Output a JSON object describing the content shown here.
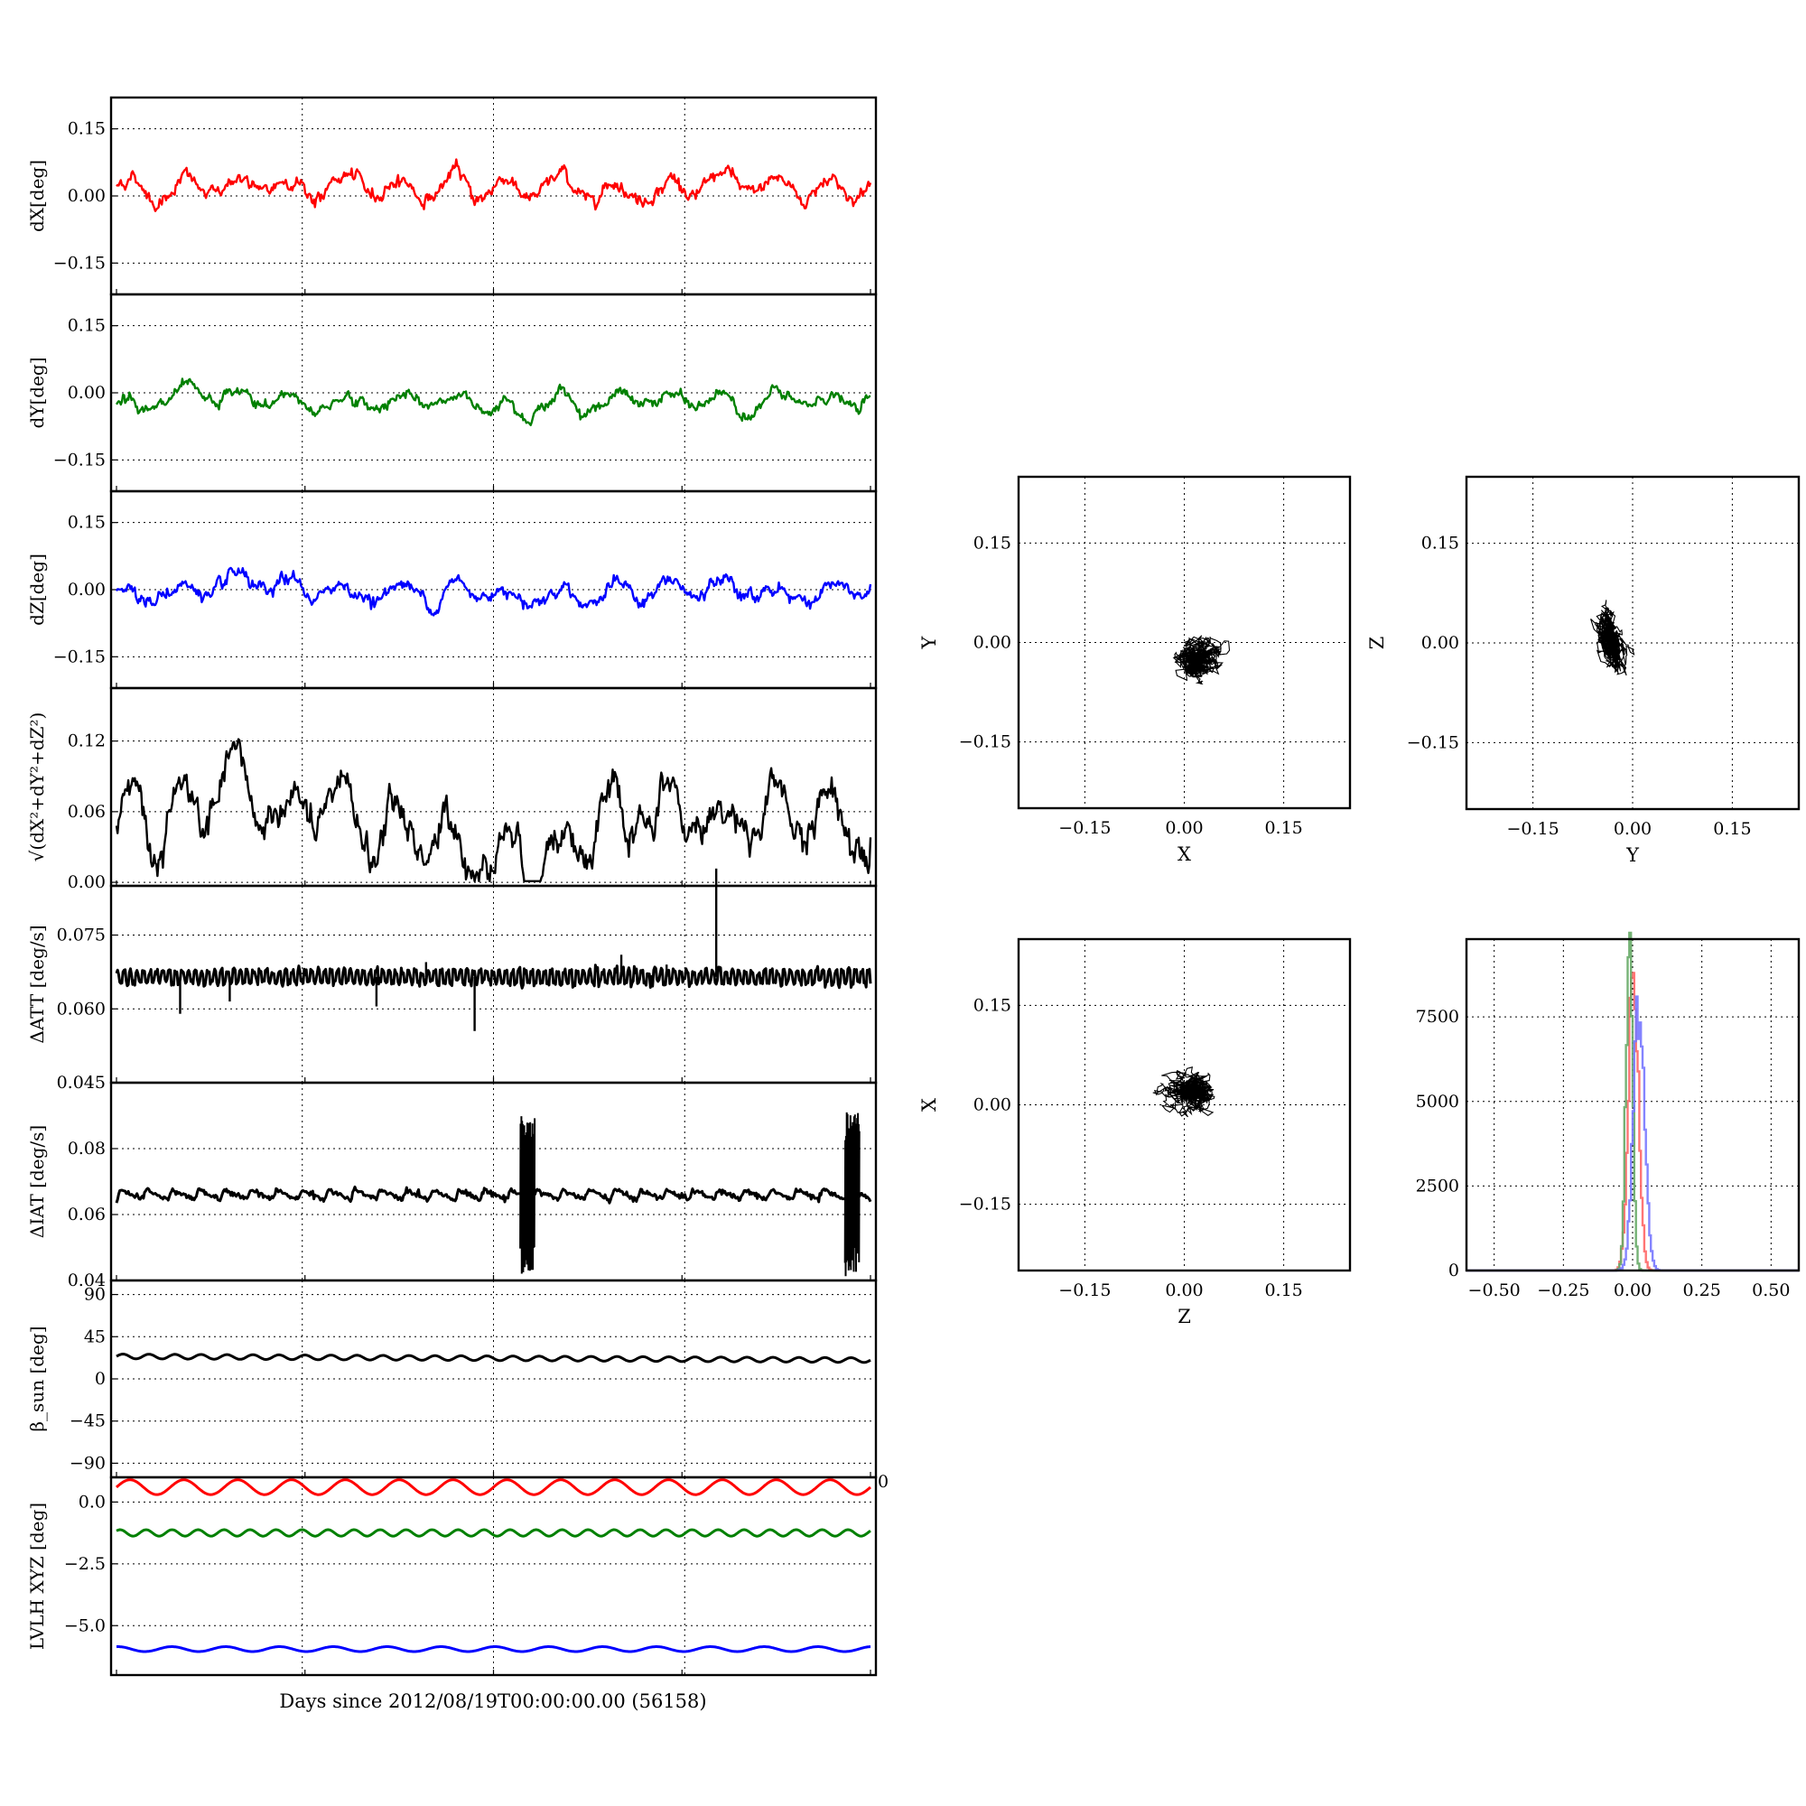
{
  "figure": {
    "xlabel": "Days since 2012/08/19T00:00:00.00 (56158)"
  },
  "chart_data": [
    {
      "type": "line",
      "ylabel": "dX[deg]",
      "yticks": [
        "0.15",
        "0.00",
        "−0.15"
      ],
      "ytick_values": [
        0.15,
        0.0,
        -0.15
      ],
      "ylim": [
        -0.22,
        0.22
      ],
      "series": [
        {
          "color": "#ff0000",
          "mean": 0.02,
          "osc_amp": 0.025,
          "noise": 0.012,
          "n_cycles": 14,
          "values": "approx, oscillating between -0.04 and 0.09"
        }
      ],
      "grid": true
    },
    {
      "type": "line",
      "ylabel": "dY[deg]",
      "yticks": [
        "0.15",
        "0.00",
        "−0.15"
      ],
      "ytick_values": [
        0.15,
        0.0,
        -0.15
      ],
      "ylim": [
        -0.22,
        0.22
      ],
      "series": [
        {
          "color": "#008000",
          "mean": -0.02,
          "osc_amp": 0.018,
          "noise": 0.01,
          "n_cycles": 14,
          "values": "approx, between -0.07 and 0.03"
        }
      ],
      "grid": true
    },
    {
      "type": "line",
      "ylabel": "dZ[deg]",
      "yticks": [
        "0.15",
        "0.00",
        "−0.15"
      ],
      "ytick_values": [
        0.15,
        0.0,
        -0.15
      ],
      "ylim": [
        -0.22,
        0.22
      ],
      "series": [
        {
          "color": "#0000ff",
          "mean": -0.005,
          "osc_amp": 0.02,
          "noise": 0.012,
          "n_cycles": 14,
          "values": "approx, between -0.07 and 0.09"
        }
      ],
      "grid": true
    },
    {
      "type": "line",
      "ylabel": "√(dX²+dY²+dZ²)",
      "yticks": [
        "0.12",
        "0.06",
        "0.00"
      ],
      "ytick_values": [
        0.12,
        0.06,
        0.0
      ],
      "ylim": [
        -0.003,
        0.165
      ],
      "series": [
        {
          "color": "#000000",
          "mean": 0.045,
          "osc_amp": 0.02,
          "noise": 0.012,
          "n_cycles": 14,
          "values": "approx, between 0.00 and 0.12"
        }
      ],
      "grid": true
    },
    {
      "type": "line",
      "ylabel": "ΔATT [deg/s]",
      "yticks": [
        "0.075",
        "0.060",
        "0.045"
      ],
      "ytick_values": [
        0.075,
        0.06,
        0.045
      ],
      "ylim": [
        0.045,
        0.085
      ],
      "series": [
        {
          "color": "#000000",
          "mean": 0.0665,
          "noise": 0.001,
          "spikes_up": [
            [
              0.41,
              0.0695
            ],
            [
              0.67,
              0.071
            ],
            [
              0.73,
              0.069
            ],
            [
              0.795,
              0.0885
            ]
          ],
          "spikes_down": [
            [
              0.085,
              0.059
            ],
            [
              0.15,
              0.0615
            ],
            [
              0.345,
              0.0605
            ],
            [
              0.475,
              0.0555
            ]
          ]
        }
      ],
      "grid": true
    },
    {
      "type": "line",
      "ylabel": "ΔIAT [deg/s]",
      "yticks": [
        "0.08",
        "0.06",
        "0.04"
      ],
      "ytick_values": [
        0.08,
        0.06,
        0.04
      ],
      "ylim": [
        0.04,
        0.1
      ],
      "series": [
        {
          "color": "#000000",
          "mean": 0.0645,
          "sawtooth_amp": 0.003,
          "n_cycles": 29,
          "bursts": [
            [
              0.545,
              0.042,
              0.092
            ],
            [
              0.975,
              0.041,
              0.092
            ]
          ]
        }
      ],
      "grid": true
    },
    {
      "type": "line",
      "ylabel": "β_sun [deg]",
      "yticks": [
        "90",
        "45",
        "0",
        "−45",
        "−90"
      ],
      "ytick_values": [
        90,
        45,
        0,
        -45,
        -90
      ],
      "ylim": [
        -105,
        105
      ],
      "series": [
        {
          "color": "#000000",
          "start": 24,
          "end": 20,
          "osc_amp": 2.5,
          "n_cycles": 29
        }
      ],
      "grid": true
    },
    {
      "type": "line",
      "ylabel": "LVLH XYZ [deg]",
      "yticks": [
        "0.0",
        "−2.5",
        "−5.0"
      ],
      "ytick_values": [
        0.0,
        -2.5,
        -5.0
      ],
      "ylim": [
        -7.0,
        1.0
      ],
      "extra_tick": "0",
      "series": [
        {
          "color": "#ff0000",
          "mean": 0.6,
          "osc_amp": 0.3,
          "n_cycles": 14
        },
        {
          "color": "#008000",
          "mean": -1.25,
          "osc_amp": 0.13,
          "n_cycles": 29
        },
        {
          "color": "#0000ff",
          "mean": -5.95,
          "osc_amp": 0.1,
          "n_cycles": 14
        }
      ],
      "grid": true
    },
    {
      "type": "scatter",
      "xlabel": "X",
      "ylabel": "Y",
      "xticks": [
        "−0.15",
        "0.00",
        "0.15"
      ],
      "yticks": [
        "0.15",
        "0.00",
        "−0.15"
      ],
      "tick_values": [
        -0.15,
        0.0,
        0.15
      ],
      "xlim": [
        -0.25,
        0.25
      ],
      "ylim": [
        -0.25,
        0.25
      ],
      "cloud": {
        "cx": 0.02,
        "cy": -0.025,
        "sx": 0.023,
        "sy": 0.018,
        "color": "#000000"
      },
      "grid": true
    },
    {
      "type": "scatter",
      "xlabel": "Y",
      "ylabel": "Z",
      "xticks": [
        "−0.15",
        "0.00",
        "0.15"
      ],
      "yticks": [
        "0.15",
        "0.00",
        "−0.15"
      ],
      "tick_values": [
        -0.15,
        0.0,
        0.15
      ],
      "xlim": [
        -0.25,
        0.25
      ],
      "ylim": [
        -0.25,
        0.25
      ],
      "cloud": {
        "cx": -0.03,
        "cy": -0.005,
        "sx": 0.015,
        "sy": 0.025,
        "tilt": -0.9,
        "color": "#000000"
      },
      "grid": true
    },
    {
      "type": "scatter",
      "xlabel": "Z",
      "ylabel": "X",
      "xticks": [
        "−0.15",
        "0.00",
        "0.15"
      ],
      "yticks": [
        "0.15",
        "0.00",
        "−0.15"
      ],
      "tick_values": [
        -0.15,
        0.0,
        0.15
      ],
      "xlim": [
        -0.25,
        0.25
      ],
      "ylim": [
        -0.25,
        0.25
      ],
      "cloud": {
        "cx": 0.005,
        "cy": 0.02,
        "sx": 0.022,
        "sy": 0.018,
        "color": "#000000"
      },
      "grid": true
    },
    {
      "type": "line",
      "subtype": "histogram",
      "xticks": [
        "−0.50",
        "−0.25",
        "0.00",
        "0.25",
        "0.50"
      ],
      "xtick_values": [
        -0.5,
        -0.25,
        0.0,
        0.25,
        0.5
      ],
      "yticks": [
        "7500",
        "5000",
        "2500",
        "0"
      ],
      "ytick_values": [
        7500,
        5000,
        2500,
        0
      ],
      "xlim": [
        -0.6,
        0.6
      ],
      "ylim": [
        0,
        9800
      ],
      "series": [
        {
          "color": "#ff6666",
          "center": 0.0,
          "sigma": 0.018,
          "peak": 8800
        },
        {
          "color": "#66aa66",
          "center": -0.015,
          "sigma": 0.012,
          "peak": 9300
        },
        {
          "color": "#7777ff",
          "center": 0.02,
          "sigma": 0.02,
          "peak": 7900
        }
      ],
      "grid": true
    }
  ]
}
